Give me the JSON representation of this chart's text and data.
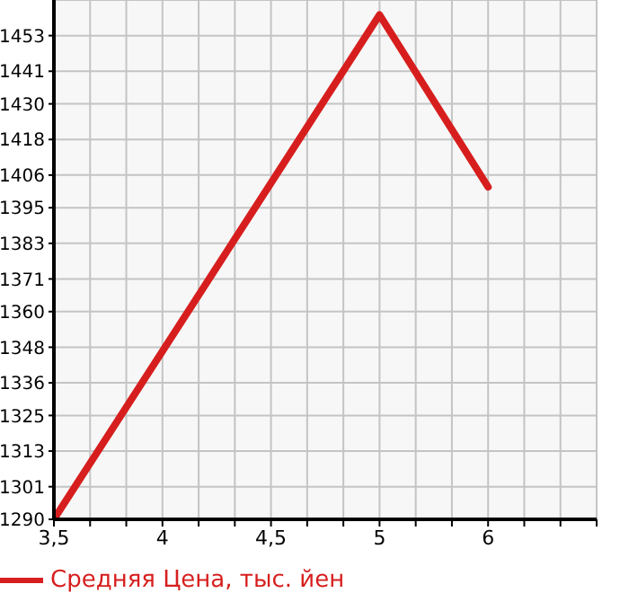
{
  "chart_data": {
    "type": "line",
    "categories": [
      "3,5",
      "4",
      "4,5",
      "5",
      "6",
      null
    ],
    "series": [
      {
        "name": "Средняя Цена, тыс. йен",
        "color": "#d71e1e",
        "values": [
          1290,
          null,
          null,
          1460,
          1402,
          null
        ]
      }
    ],
    "ylim": [
      1290,
      1465
    ],
    "yticks": [
      1290,
      1301,
      1313,
      1325,
      1336,
      1348,
      1360,
      1371,
      1383,
      1395,
      1406,
      1418,
      1430,
      1441,
      1453
    ],
    "grid": true,
    "legend": "bottom",
    "marker": "none",
    "line_style": "solid"
  }
}
